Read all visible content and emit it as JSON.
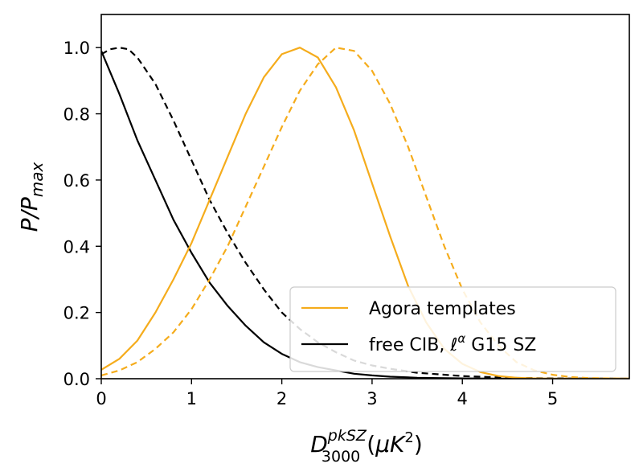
{
  "chart_data": {
    "type": "line",
    "xlim": [
      0,
      5.85
    ],
    "ylim": [
      0,
      1.1
    ],
    "x_ticks": [
      0,
      1,
      2,
      3,
      4,
      5
    ],
    "y_ticks": [
      0.0,
      0.2,
      0.4,
      0.6,
      0.8,
      1.0
    ],
    "x_tick_labels": [
      "0",
      "1",
      "2",
      "3",
      "4",
      "5"
    ],
    "y_tick_labels": [
      "0.0",
      "0.2",
      "0.4",
      "0.6",
      "0.8",
      "1.0"
    ],
    "xlabel": {
      "base": "D",
      "superscript": "pkSZ",
      "subscript": "3000",
      "unit": "(μK²)",
      "unit_open": "(",
      "unit_mu": "μ",
      "unit_K": "K",
      "unit_sup": "2",
      "unit_close": ")"
    },
    "ylabel": {
      "base": "P/P",
      "subscript": "max"
    },
    "legend": {
      "placement": "lower-right",
      "entries": [
        {
          "label": "Agora templates",
          "color": "#f5ac1c",
          "style": "solid"
        },
        {
          "label": "free CIB, ℓ^α G15 SZ",
          "label_parts": {
            "pre": "free CIB, ",
            "ell": "ℓ",
            "alpha": "α",
            "post": " G15 SZ"
          },
          "color": "#000000",
          "style": "solid"
        }
      ]
    },
    "series": [
      {
        "name": "Agora templates",
        "color": "#f5ac1c",
        "style": "solid",
        "points": [
          [
            0,
            0.027
          ],
          [
            0.2,
            0.06
          ],
          [
            0.4,
            0.115
          ],
          [
            0.6,
            0.2
          ],
          [
            0.8,
            0.3
          ],
          [
            1.0,
            0.41
          ],
          [
            1.2,
            0.54
          ],
          [
            1.4,
            0.67
          ],
          [
            1.6,
            0.8
          ],
          [
            1.8,
            0.91
          ],
          [
            2.0,
            0.98
          ],
          [
            2.2,
            1.0
          ],
          [
            2.4,
            0.97
          ],
          [
            2.6,
            0.88
          ],
          [
            2.8,
            0.75
          ],
          [
            3.0,
            0.59
          ],
          [
            3.2,
            0.43
          ],
          [
            3.4,
            0.28
          ],
          [
            3.6,
            0.17
          ],
          [
            3.8,
            0.09
          ],
          [
            4.0,
            0.045
          ],
          [
            4.2,
            0.02
          ],
          [
            4.4,
            0.008
          ],
          [
            4.6,
            0.003
          ],
          [
            4.8,
            0.001
          ],
          [
            5.0,
            0.0
          ],
          [
            5.85,
            0.0
          ]
        ]
      },
      {
        "color": "#f5ac1c",
        "style": "dashed",
        "points": [
          [
            0,
            0.01
          ],
          [
            0.2,
            0.025
          ],
          [
            0.4,
            0.05
          ],
          [
            0.6,
            0.09
          ],
          [
            0.8,
            0.14
          ],
          [
            1.0,
            0.21
          ],
          [
            1.2,
            0.3
          ],
          [
            1.4,
            0.4
          ],
          [
            1.6,
            0.52
          ],
          [
            1.8,
            0.64
          ],
          [
            2.0,
            0.76
          ],
          [
            2.2,
            0.87
          ],
          [
            2.4,
            0.95
          ],
          [
            2.6,
            1.0
          ],
          [
            2.8,
            0.99
          ],
          [
            3.0,
            0.93
          ],
          [
            3.2,
            0.83
          ],
          [
            3.4,
            0.7
          ],
          [
            3.6,
            0.55
          ],
          [
            3.8,
            0.4
          ],
          [
            4.0,
            0.27
          ],
          [
            4.2,
            0.17
          ],
          [
            4.4,
            0.1
          ],
          [
            4.6,
            0.05
          ],
          [
            4.8,
            0.025
          ],
          [
            5.0,
            0.012
          ],
          [
            5.2,
            0.005
          ],
          [
            5.4,
            0.002
          ],
          [
            5.85,
            0.0
          ]
        ]
      },
      {
        "name": "free CIB, ℓ^α G15 SZ",
        "color": "#000000",
        "style": "solid",
        "points": [
          [
            0,
            0.99
          ],
          [
            0.2,
            0.86
          ],
          [
            0.4,
            0.72
          ],
          [
            0.6,
            0.6
          ],
          [
            0.8,
            0.48
          ],
          [
            1.0,
            0.38
          ],
          [
            1.2,
            0.29
          ],
          [
            1.4,
            0.22
          ],
          [
            1.6,
            0.16
          ],
          [
            1.8,
            0.11
          ],
          [
            2.0,
            0.075
          ],
          [
            2.2,
            0.05
          ],
          [
            2.4,
            0.035
          ],
          [
            2.6,
            0.025
          ],
          [
            2.8,
            0.015
          ],
          [
            3.0,
            0.01
          ],
          [
            3.2,
            0.006
          ],
          [
            3.5,
            0.003
          ],
          [
            4.0,
            0.001
          ],
          [
            4.5,
            0.0
          ],
          [
            5.85,
            0.0
          ]
        ]
      },
      {
        "color": "#000000",
        "style": "dashed",
        "points": [
          [
            0,
            0.98
          ],
          [
            0.1,
            0.995
          ],
          [
            0.2,
            1.0
          ],
          [
            0.3,
            0.995
          ],
          [
            0.4,
            0.97
          ],
          [
            0.6,
            0.89
          ],
          [
            0.8,
            0.78
          ],
          [
            1.0,
            0.66
          ],
          [
            1.2,
            0.54
          ],
          [
            1.4,
            0.44
          ],
          [
            1.6,
            0.35
          ],
          [
            1.8,
            0.27
          ],
          [
            2.0,
            0.2
          ],
          [
            2.2,
            0.15
          ],
          [
            2.4,
            0.11
          ],
          [
            2.6,
            0.08
          ],
          [
            2.8,
            0.055
          ],
          [
            3.0,
            0.04
          ],
          [
            3.2,
            0.03
          ],
          [
            3.5,
            0.018
          ],
          [
            4.0,
            0.008
          ],
          [
            4.5,
            0.003
          ],
          [
            5.0,
            0.001
          ],
          [
            5.85,
            0.0
          ]
        ]
      }
    ]
  }
}
